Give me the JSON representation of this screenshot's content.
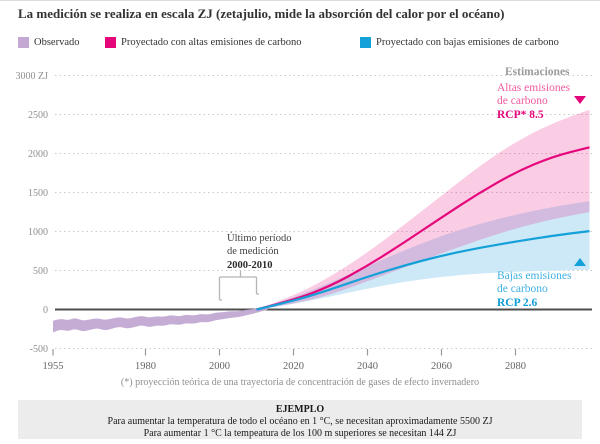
{
  "title": "La medición se realiza en escala ZJ (zetajulio, mide la absorción del calor por el océano)",
  "legend": [
    {
      "label": "Observado",
      "color": "#c2a8d2"
    },
    {
      "label": "Proyectado con altas emisiones de carbono",
      "color": "#e5067c"
    },
    {
      "label": "Proyectado con bajas emisiones de carbono",
      "color": "#14a0d8"
    }
  ],
  "annotation": {
    "line1": "Último período",
    "line2": "de medición",
    "line3": "2000-2010"
  },
  "estimates": {
    "heading": "Estimaciones",
    "high": {
      "line1": "Altas emisiones",
      "line2": "de carbono",
      "rcp": "RCP* 8.5",
      "color": "#e5067c"
    },
    "low": {
      "line1": "Bajas emisiones",
      "line2": "de carbono",
      "rcp": "RCP 2.6",
      "color": "#14a0d8"
    }
  },
  "footnote": "(*) proyección teórica de una trayectoria de concentración de gases de efecto invernadero",
  "example": {
    "heading": "EJEMPLO",
    "line1": "Para aumentar la temperatura de todo el océano en 1 °C, se necesitan aproximadamente 5500 ZJ",
    "line2": "Para aumentar 1 °C la tempeatura de los 100 m  superiores se necesitan 144 ZJ"
  },
  "chart_data": {
    "type": "area",
    "title": "La medición se realiza en escala ZJ (zetajulio, mide la absorción del calor por el océano)",
    "unit": "ZJ",
    "xrange": [
      1955,
      2100
    ],
    "yrange": [
      -500,
      3000
    ],
    "xticks": [
      1955,
      1980,
      2000,
      2020,
      2040,
      2060,
      2080
    ],
    "yticks": [
      {
        "value": 3000,
        "label": "3000 ZJ"
      },
      {
        "value": 2500,
        "label": "2500"
      },
      {
        "value": 2000,
        "label": "2000"
      },
      {
        "value": 1500,
        "label": "1500"
      },
      {
        "value": 1000,
        "label": "1000"
      },
      {
        "value": 500,
        "label": "500"
      },
      {
        "value": 0,
        "label": "0"
      },
      {
        "value": -500,
        "label": "-500"
      }
    ],
    "grid": "dotted-horizontal",
    "legend_position": "top",
    "series": [
      {
        "name": "Observado",
        "type": "band",
        "band_color": "#c2a8d2",
        "x": [
          1955,
          1957,
          1959,
          1961,
          1963,
          1965,
          1967,
          1969,
          1971,
          1973,
          1975,
          1977,
          1979,
          1981,
          1983,
          1985,
          1987,
          1989,
          1991,
          1993,
          1995,
          1997,
          1999,
          2001,
          2003,
          2005,
          2007,
          2009,
          2011,
          2013
        ],
        "upper": [
          -145,
          -115,
          -140,
          -105,
          -145,
          -125,
          -110,
          -135,
          -115,
          -95,
          -120,
          -100,
          -80,
          -105,
          -85,
          -95,
          -70,
          -90,
          -65,
          -80,
          -55,
          -65,
          -40,
          -35,
          -20,
          -25,
          -5,
          5,
          20,
          30
        ],
        "lower": [
          -295,
          -255,
          -280,
          -245,
          -285,
          -260,
          -240,
          -270,
          -245,
          -220,
          -245,
          -225,
          -200,
          -230,
          -205,
          -210,
          -185,
          -200,
          -175,
          -185,
          -160,
          -165,
          -135,
          -125,
          -105,
          -100,
          -75,
          -55,
          -30,
          -5
        ]
      },
      {
        "name": "Proyectado con altas emisiones de carbono (RCP 8.5)",
        "type": "line+band",
        "color": "#e5067c",
        "band_color": "rgba(230,7,125,0.20)",
        "x": [
          2010,
          2020,
          2030,
          2040,
          2050,
          2060,
          2070,
          2080,
          2090,
          2100
        ],
        "center": [
          0,
          120,
          300,
          560,
          860,
          1180,
          1490,
          1760,
          1960,
          2080
        ],
        "upper": [
          5,
          170,
          420,
          730,
          1090,
          1460,
          1830,
          2150,
          2390,
          2560
        ],
        "lower": [
          -5,
          70,
          190,
          360,
          540,
          720,
          890,
          1040,
          1160,
          1250
        ]
      },
      {
        "name": "Proyectado con bajas emisiones de carbono (RCP 2.6)",
        "type": "line+band",
        "color": "#14a0d8",
        "band_color": "#cde9f7",
        "x": [
          2010,
          2020,
          2030,
          2040,
          2050,
          2060,
          2070,
          2080,
          2090,
          2100
        ],
        "center": [
          0,
          110,
          255,
          420,
          565,
          690,
          790,
          870,
          945,
          1005
        ],
        "upper": [
          5,
          150,
          345,
          555,
          760,
          945,
          1095,
          1215,
          1315,
          1390
        ],
        "lower": [
          -5,
          70,
          165,
          270,
          355,
          420,
          460,
          485,
          500,
          510
        ]
      }
    ]
  }
}
